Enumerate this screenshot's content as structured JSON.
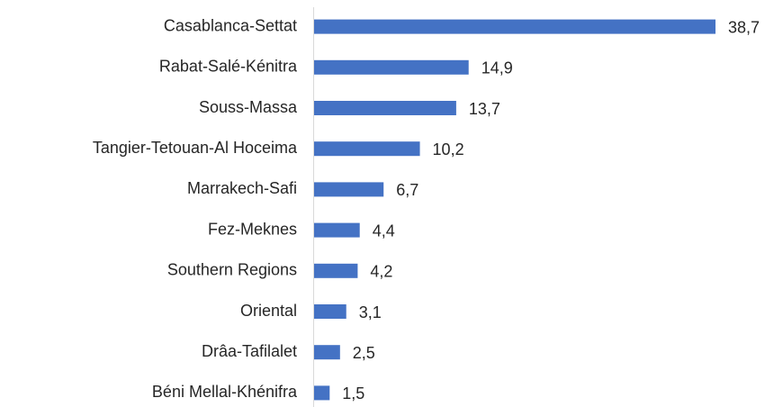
{
  "chart_data": {
    "type": "bar",
    "orientation": "horizontal",
    "color": "#4472c4",
    "categories": [
      "Casablanca-Settat",
      "Rabat-Salé-Kénitra",
      "Souss-Massa",
      "Tangier-Tetouan-Al Hoceima",
      "Marrakech-Safi",
      "Fez-Meknes",
      "Southern Regions",
      "Oriental",
      "Drâa-Tafilalet",
      "Béni Mellal-Khénifra"
    ],
    "values": [
      38.7,
      14.9,
      13.7,
      10.2,
      6.7,
      4.4,
      4.2,
      3.1,
      2.5,
      1.5
    ],
    "value_labels": [
      "38,7",
      "14,9",
      "13,7",
      "10,2",
      "6,7",
      "4,4",
      "4,2",
      "3,1",
      "2,5",
      "1,5"
    ]
  }
}
